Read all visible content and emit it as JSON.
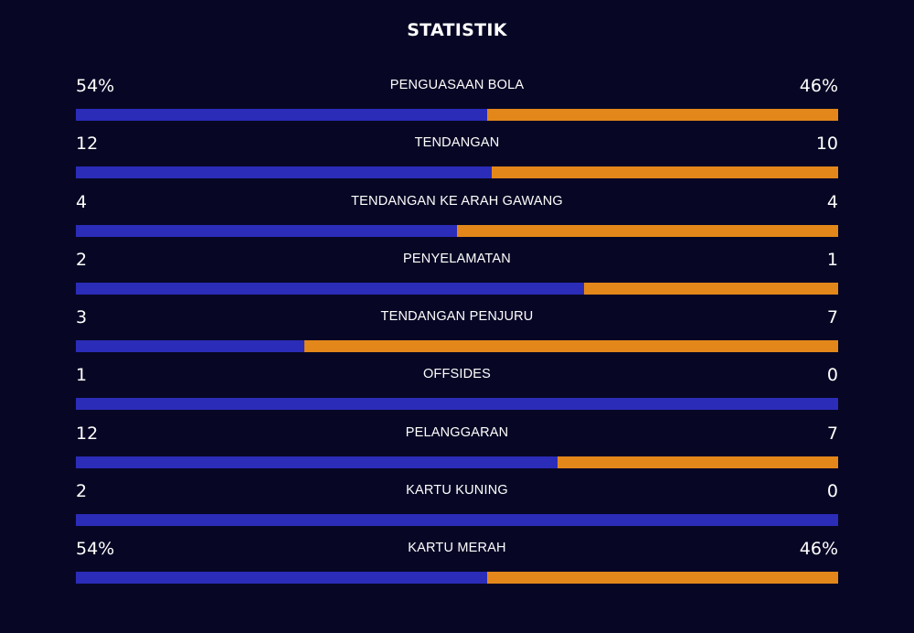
{
  "title": "STATISTIK",
  "colors": {
    "background": "#070725",
    "home": "#2b2cb8",
    "away": "#e3871a"
  },
  "stats": [
    {
      "name": "PENGUASAAN BOLA",
      "home": "54%",
      "away": "46%",
      "home_share": 0.54
    },
    {
      "name": "TENDANGAN",
      "home": "12",
      "away": "10",
      "home_share": 0.545
    },
    {
      "name": "TENDANGAN KE ARAH GAWANG",
      "home": "4",
      "away": "4",
      "home_share": 0.5
    },
    {
      "name": "PENYELAMATAN",
      "home": "2",
      "away": "1",
      "home_share": 0.667
    },
    {
      "name": "TENDANGAN PENJURU",
      "home": "3",
      "away": "7",
      "home_share": 0.3
    },
    {
      "name": "OFFSIDES",
      "home": "1",
      "away": "0",
      "home_share": 1.0
    },
    {
      "name": "PELANGGARAN",
      "home": "12",
      "away": "7",
      "home_share": 0.632
    },
    {
      "name": "KARTU KUNING",
      "home": "2",
      "away": "0",
      "home_share": 1.0
    },
    {
      "name": "KARTU MERAH",
      "home": "54%",
      "away": "46%",
      "home_share": 0.54
    }
  ]
}
